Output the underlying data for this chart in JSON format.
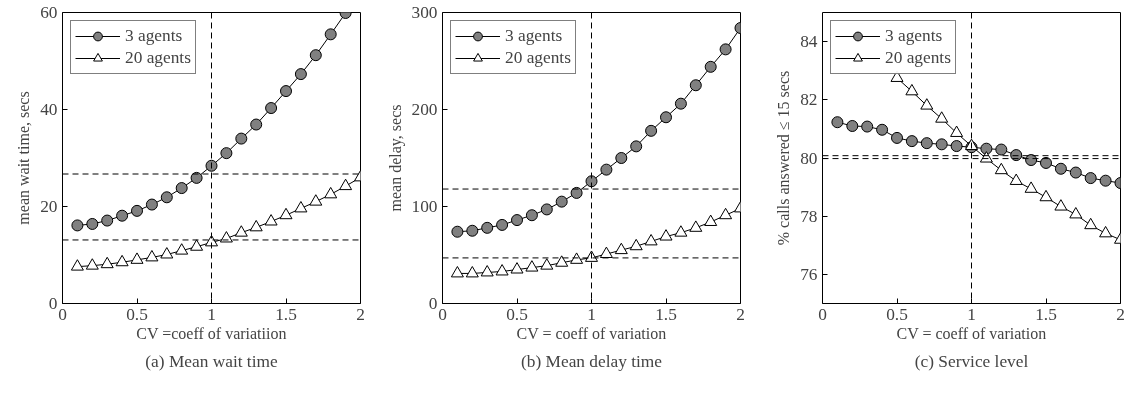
{
  "chart_data": [
    {
      "type": "line",
      "xlabel": "CV =coeff of variatiion",
      "ylabel": "mean wait time, secs",
      "annotations": [
        "(a) Mean wait time"
      ],
      "xlim": [
        0,
        2
      ],
      "xticks": [
        0,
        0.5,
        1,
        1.5,
        2
      ],
      "ylim": [
        0,
        60
      ],
      "yticks": [
        0,
        20,
        40,
        60
      ],
      "legend": "top left",
      "grid": false,
      "x": [
        0.1,
        0.2,
        0.3,
        0.4,
        0.5,
        0.6,
        0.7,
        0.8,
        0.9,
        1.0,
        1.1,
        1.2,
        1.3,
        1.4,
        1.5,
        1.6,
        1.7,
        1.8,
        1.9,
        2.0
      ],
      "series": [
        {
          "name": "3 agents",
          "marker": "circle",
          "color": "#808080",
          "values": [
            16.1,
            16.4,
            17.1,
            18.1,
            19.1,
            20.4,
            21.9,
            23.8,
            25.9,
            28.4,
            31.0,
            34.0,
            36.9,
            40.3,
            43.8,
            47.3,
            51.2,
            55.5,
            59.9,
            null
          ]
        },
        {
          "name": "20 agents",
          "marker": "triangle",
          "color": "#ffffff",
          "values": [
            7.6,
            7.8,
            8.1,
            8.5,
            9.0,
            9.5,
            10.1,
            10.9,
            11.7,
            12.6,
            13.4,
            14.6,
            15.7,
            16.9,
            18.2,
            19.6,
            21.0,
            22.5,
            24.2,
            26.0
          ]
        }
      ],
      "ref_lines": [
        {
          "axis": "x",
          "value": 1,
          "line_style": "dashed"
        },
        {
          "axis": "y",
          "value": 26.7,
          "line_style": "dashed"
        },
        {
          "axis": "y",
          "value": 13.1,
          "line_style": "dashed"
        }
      ]
    },
    {
      "type": "line",
      "xlabel": "CV = coeff of variation",
      "ylabel": "mean delay, secs",
      "annotations": [
        "(b) Mean delay time"
      ],
      "xlim": [
        0,
        2
      ],
      "xticks": [
        0,
        0.5,
        1,
        1.5,
        2
      ],
      "ylim": [
        0,
        300
      ],
      "yticks": [
        0,
        100,
        200,
        300
      ],
      "legend": "top left",
      "grid": false,
      "x": [
        0.1,
        0.2,
        0.3,
        0.4,
        0.5,
        0.6,
        0.7,
        0.8,
        0.9,
        1.0,
        1.1,
        1.2,
        1.3,
        1.4,
        1.5,
        1.6,
        1.7,
        1.8,
        1.9,
        2.0
      ],
      "series": [
        {
          "name": "3 agents",
          "marker": "circle",
          "color": "#808080",
          "values": [
            74,
            75,
            78,
            81,
            86,
            91,
            97,
            105,
            114,
            126,
            138,
            150,
            162,
            178,
            192,
            206,
            225,
            244,
            262,
            284
          ]
        },
        {
          "name": "20 agents",
          "marker": "triangle",
          "color": "#ffffff",
          "values": [
            31,
            31,
            32,
            33,
            35,
            37,
            39,
            42,
            45,
            47,
            51,
            55,
            59,
            64,
            69,
            73,
            78,
            84,
            91,
            98
          ]
        }
      ],
      "ref_lines": [
        {
          "axis": "x",
          "value": 1,
          "line_style": "dashed"
        },
        {
          "axis": "y",
          "value": 118,
          "line_style": "dashed"
        },
        {
          "axis": "y",
          "value": 47,
          "line_style": "dashed"
        }
      ]
    },
    {
      "type": "line",
      "xlabel": "CV = coeff of variation",
      "ylabel": "% calls answered ≤ 15 secs",
      "annotations": [
        "(c) Service level"
      ],
      "xlim": [
        0,
        2
      ],
      "xticks": [
        0,
        0.5,
        1,
        1.5,
        2
      ],
      "ylim": [
        75,
        85
      ],
      "yticks": [
        76,
        78,
        80,
        82,
        84
      ],
      "legend": "top left",
      "grid": false,
      "x": [
        0.1,
        0.2,
        0.3,
        0.4,
        0.5,
        0.6,
        0.7,
        0.8,
        0.9,
        1.0,
        1.1,
        1.2,
        1.3,
        1.4,
        1.5,
        1.6,
        1.7,
        1.8,
        1.9,
        2.0
      ],
      "series": [
        {
          "name": "3 agents",
          "marker": "circle",
          "color": "#808080",
          "values": [
            81.23,
            81.1,
            81.08,
            80.97,
            80.69,
            80.58,
            80.51,
            80.47,
            80.41,
            80.37,
            80.32,
            80.29,
            80.1,
            79.93,
            79.83,
            79.63,
            79.5,
            79.31,
            79.22,
            79.14
          ]
        },
        {
          "name": "20 agents",
          "marker": "triangle",
          "color": "#ffffff",
          "values": [
            null,
            null,
            null,
            null,
            82.75,
            82.29,
            81.8,
            81.35,
            80.86,
            80.41,
            79.98,
            79.58,
            79.21,
            78.94,
            78.65,
            78.33,
            78.06,
            77.69,
            77.41,
            77.19
          ]
        }
      ],
      "ref_lines": [
        {
          "axis": "x",
          "value": 1,
          "line_style": "dashed"
        },
        {
          "axis": "y",
          "value": 80.08,
          "line_style": "dashed"
        },
        {
          "axis": "y",
          "value": 79.98,
          "line_style": "dashed"
        }
      ]
    }
  ]
}
